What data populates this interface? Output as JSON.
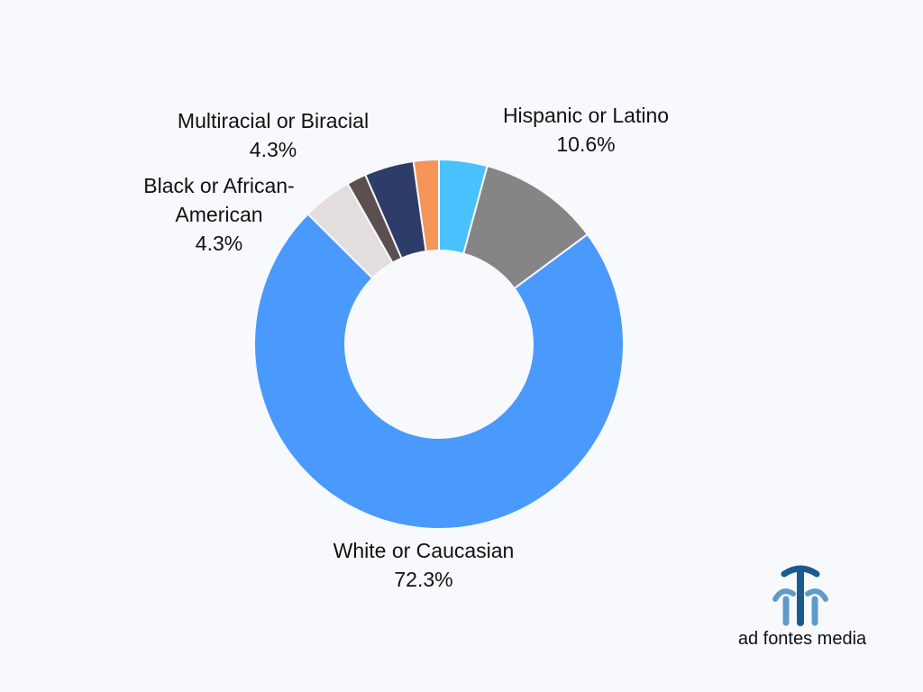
{
  "chart_data": {
    "type": "pie",
    "donut": true,
    "title": "",
    "slices": [
      {
        "label_lines": [
          "Hispanic or Latino"
        ],
        "label": "Hispanic or Latino",
        "value": 10.6,
        "value_text": "10.6%",
        "color": "#858585"
      },
      {
        "label_lines": [
          "White or Caucasian"
        ],
        "label": "White or Caucasian",
        "value": 72.3,
        "value_text": "72.3%",
        "color": "#4a99fd"
      },
      {
        "label_lines": [
          "Black or African-",
          "American"
        ],
        "label": "Black or African-American",
        "value": 4.3,
        "value_text": "4.3%",
        "color": "#e3dedd"
      },
      {
        "label": "",
        "value": 1.7,
        "value_text": "",
        "color": "#5b4f4f"
      },
      {
        "label_lines": [
          "Multiracial or Biracial"
        ],
        "label": "Multiracial or Biracial",
        "value": 4.3,
        "value_text": "4.3%",
        "color": "#2e3c69"
      },
      {
        "label": "",
        "value": 2.2,
        "value_text": "",
        "color": "#f59557"
      },
      {
        "label": "",
        "value": 4.2,
        "value_text": "",
        "color": "#49c2ff"
      }
    ],
    "first_slice_index_from_top": 6,
    "legend": "none"
  },
  "logo": {
    "text": "ad fontes media",
    "colors": {
      "dark": "#1b5a8c",
      "light": "#5d9bc9"
    },
    "icon": "fountain-icon"
  }
}
